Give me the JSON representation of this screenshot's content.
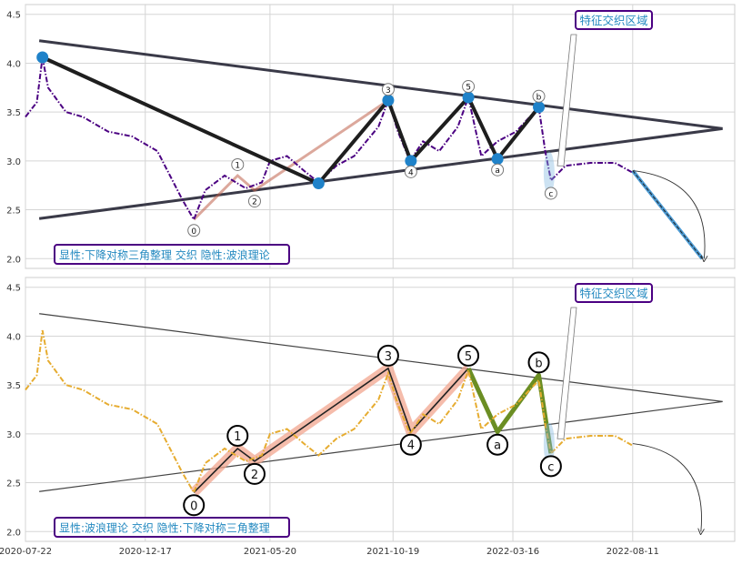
{
  "chart_data": [
    {
      "type": "line",
      "panel": "top",
      "ylim": [
        1.9,
        4.6
      ],
      "yticks": [
        "2.0",
        "2.5",
        "3.0",
        "3.5",
        "4.0",
        "4.5"
      ],
      "grid": true,
      "price_color": "#4b0082",
      "series": [
        {
          "style": "dash-dot",
          "x": [
            "2020-07-22",
            "2020-08-05",
            "2020-08-12",
            "2020-08-19",
            "2020-09-10",
            "2020-10-01",
            "2020-11-01",
            "2020-12-01",
            "2021-01-01",
            "2021-02-01",
            "2021-02-15",
            "2021-03-01",
            "2021-03-25",
            "2021-04-20",
            "2021-05-10",
            "2021-05-20",
            "2021-06-10",
            "2021-07-01",
            "2021-07-19",
            "2021-08-10",
            "2021-09-01",
            "2021-10-01",
            "2021-10-13",
            "2021-10-25",
            "2021-11-09",
            "2021-11-25",
            "2021-12-15",
            "2022-01-07",
            "2022-01-20",
            "2022-02-05",
            "2022-02-25",
            "2022-03-20",
            "2022-04-17",
            "2022-04-25",
            "2022-05-02",
            "2022-05-20",
            "2022-06-20",
            "2022-07-20",
            "2022-08-11"
          ],
          "y": [
            3.45,
            3.6,
            4.06,
            3.75,
            3.5,
            3.45,
            3.3,
            3.25,
            3.1,
            2.6,
            2.4,
            2.7,
            2.85,
            2.72,
            2.78,
            3.0,
            3.05,
            2.9,
            2.78,
            2.95,
            3.05,
            3.35,
            3.62,
            3.3,
            3.0,
            3.2,
            3.1,
            3.35,
            3.65,
            3.05,
            3.2,
            3.3,
            3.55,
            3.1,
            2.8,
            2.95,
            2.98,
            2.98,
            2.88
          ]
        }
      ],
      "wave_points": [
        {
          "label": "0",
          "x": "2021-02-15",
          "y": 2.4
        },
        {
          "label": "1",
          "x": "2021-04-10",
          "y": 2.85
        },
        {
          "label": "2",
          "x": "2021-05-01",
          "y": 2.7
        },
        {
          "label": "3",
          "x": "2021-10-13",
          "y": 3.62
        },
        {
          "label": "4",
          "x": "2021-11-10",
          "y": 3.0
        },
        {
          "label": "5",
          "x": "2022-01-20",
          "y": 3.65
        },
        {
          "label": "a",
          "x": "2022-02-25",
          "y": 3.02
        },
        {
          "label": "b",
          "x": "2022-04-17",
          "y": 3.55
        },
        {
          "label": "c",
          "x": "2022-05-02",
          "y": 2.78
        }
      ],
      "triangle_points": [
        {
          "x": "2020-08-12",
          "y": 4.06
        },
        {
          "x": "2021-07-19",
          "y": 2.77
        },
        {
          "x": "2021-10-13",
          "y": 3.62
        },
        {
          "x": "2021-11-10",
          "y": 3.0
        },
        {
          "x": "2022-01-20",
          "y": 3.65
        },
        {
          "x": "2022-02-25",
          "y": 3.02
        },
        {
          "x": "2022-04-17",
          "y": 3.55
        }
      ],
      "trendlines": [
        {
          "from": {
            "x": "2020-08-08",
            "y": 4.23
          },
          "to": {
            "x": "2022-11-30",
            "y": 3.33
          }
        },
        {
          "from": {
            "x": "2020-08-08",
            "y": 2.41
          },
          "to": {
            "x": "2022-11-30",
            "y": 3.33
          }
        }
      ],
      "projection": {
        "from": {
          "x": "2022-08-11",
          "y": 2.9
        },
        "to": {
          "x": "2022-11-05",
          "y": 2.0
        }
      },
      "annotation": "特征交织区域",
      "legend_text": "显性:下降对称三角整理 交织 隐性:波浪理论"
    },
    {
      "type": "line",
      "panel": "bottom",
      "ylim": [
        1.9,
        4.6
      ],
      "yticks": [
        "2.0",
        "2.5",
        "3.0",
        "3.5",
        "4.0",
        "4.5"
      ],
      "xticks": [
        "2020-07-22",
        "2020-12-17",
        "2021-05-20",
        "2021-10-19",
        "2022-03-16",
        "2022-08-11"
      ],
      "grid": true,
      "price_color": "#e6ac30",
      "series": [
        {
          "style": "dash-dot",
          "x": [
            "2020-07-22",
            "2020-08-05",
            "2020-08-12",
            "2020-08-19",
            "2020-09-10",
            "2020-10-01",
            "2020-11-01",
            "2020-12-01",
            "2021-01-01",
            "2021-02-01",
            "2021-02-15",
            "2021-03-01",
            "2021-03-25",
            "2021-04-20",
            "2021-05-10",
            "2021-05-20",
            "2021-06-10",
            "2021-07-01",
            "2021-07-19",
            "2021-08-10",
            "2021-09-01",
            "2021-10-01",
            "2021-10-13",
            "2021-10-25",
            "2021-11-09",
            "2021-11-25",
            "2021-12-15",
            "2022-01-07",
            "2022-01-20",
            "2022-02-05",
            "2022-02-25",
            "2022-03-20",
            "2022-04-17",
            "2022-04-25",
            "2022-05-02",
            "2022-05-20",
            "2022-06-20",
            "2022-07-20",
            "2022-08-11"
          ],
          "y": [
            3.45,
            3.6,
            4.06,
            3.75,
            3.5,
            3.45,
            3.3,
            3.25,
            3.1,
            2.6,
            2.4,
            2.7,
            2.85,
            2.72,
            2.78,
            3.0,
            3.05,
            2.9,
            2.78,
            2.95,
            3.05,
            3.35,
            3.62,
            3.3,
            3.0,
            3.2,
            3.1,
            3.35,
            3.65,
            3.05,
            3.2,
            3.3,
            3.55,
            3.1,
            2.8,
            2.95,
            2.98,
            2.98,
            2.88
          ]
        }
      ],
      "wave_points": [
        {
          "label": "0",
          "x": "2021-02-15",
          "y": 2.4
        },
        {
          "label": "1",
          "x": "2021-04-10",
          "y": 2.85
        },
        {
          "label": "2",
          "x": "2021-05-01",
          "y": 2.72
        },
        {
          "label": "3",
          "x": "2021-10-13",
          "y": 3.67
        },
        {
          "label": "4",
          "x": "2021-11-10",
          "y": 3.02
        },
        {
          "label": "5",
          "x": "2022-01-20",
          "y": 3.67
        },
        {
          "label": "a",
          "x": "2022-02-25",
          "y": 3.02
        },
        {
          "label": "b",
          "x": "2022-04-17",
          "y": 3.6
        },
        {
          "label": "c",
          "x": "2022-05-02",
          "y": 2.8
        }
      ],
      "trendlines": [
        {
          "from": {
            "x": "2020-08-08",
            "y": 4.23
          },
          "to": {
            "x": "2022-11-30",
            "y": 3.33
          }
        },
        {
          "from": {
            "x": "2020-08-08",
            "y": 2.41
          },
          "to": {
            "x": "2022-11-30",
            "y": 3.33
          }
        }
      ],
      "projection": {
        "from": {
          "x": "2022-08-11",
          "y": 2.9
        },
        "to": {
          "x": "2022-11-01",
          "y": 2.0
        }
      },
      "annotation": "特征交织区域",
      "legend_text": "显性:波浪理论 交织 隐性:下降对称三角整理"
    }
  ]
}
